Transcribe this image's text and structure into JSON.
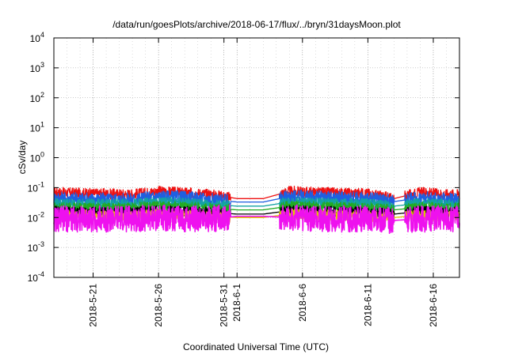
{
  "chart_data": {
    "type": "line",
    "title": "/data/run/goesPlots/archive/2018-06-17/flux/../bryn/31daysMoon.plot",
    "xlabel": "Coordinated Universal Time (UTC)",
    "ylabel": "cSv/day",
    "yscale": "log",
    "ylim": [
      0.0001,
      10000
    ],
    "xlim": [
      "2018-05-18 00:00",
      "2018-06-18 00:00"
    ],
    "grid": true,
    "legend": "none",
    "y_ticks": [
      {
        "value": 0.0001,
        "base": "10",
        "exp": "-4"
      },
      {
        "value": 0.001,
        "base": "10",
        "exp": "-3"
      },
      {
        "value": 0.01,
        "base": "10",
        "exp": "-2"
      },
      {
        "value": 0.1,
        "base": "10",
        "exp": "-1"
      },
      {
        "value": 1,
        "base": "10",
        "exp": "0"
      },
      {
        "value": 10,
        "base": "10",
        "exp": "1"
      },
      {
        "value": 100,
        "base": "10",
        "exp": "2"
      },
      {
        "value": 1000,
        "base": "10",
        "exp": "3"
      },
      {
        "value": 10000,
        "base": "10",
        "exp": "4"
      }
    ],
    "x_ticks": [
      "2018-5-21",
      "2018-5-26",
      "2018-5-31",
      "2018-6-1",
      "2018-6-6",
      "2018-6-11",
      "2018-6-16"
    ],
    "series": [
      {
        "color": "#ee1111",
        "x": [
          "2018-05-18",
          "2018-05-20",
          "2018-05-22",
          "2018-05-24",
          "2018-05-26",
          "2018-05-28",
          "2018-05-30",
          "2018-06-01",
          "2018-06-03",
          "2018-06-05",
          "2018-06-07",
          "2018-06-09",
          "2018-06-11",
          "2018-06-13",
          "2018-06-15",
          "2018-06-17"
        ],
        "values": [
          0.07,
          0.065,
          0.062,
          0.06,
          0.075,
          0.068,
          0.06,
          0.043,
          0.043,
          0.075,
          0.07,
          0.066,
          0.064,
          0.043,
          0.07,
          0.06
        ]
      },
      {
        "color": "#1f5fe0",
        "x": [
          "2018-05-18",
          "2018-05-20",
          "2018-05-22",
          "2018-05-24",
          "2018-05-26",
          "2018-05-28",
          "2018-05-30",
          "2018-06-01",
          "2018-06-03",
          "2018-06-05",
          "2018-06-07",
          "2018-06-09",
          "2018-06-11",
          "2018-06-13",
          "2018-06-15",
          "2018-06-17"
        ],
        "values": [
          0.045,
          0.042,
          0.04,
          0.04,
          0.05,
          0.046,
          0.04,
          0.033,
          0.033,
          0.05,
          0.048,
          0.045,
          0.042,
          0.034,
          0.046,
          0.04
        ]
      },
      {
        "color": "#14a3a3",
        "x": [
          "2018-05-18",
          "2018-05-20",
          "2018-05-22",
          "2018-05-24",
          "2018-05-26",
          "2018-05-28",
          "2018-05-30",
          "2018-06-01",
          "2018-06-03",
          "2018-06-05",
          "2018-06-07",
          "2018-06-09",
          "2018-06-11",
          "2018-06-13",
          "2018-06-15",
          "2018-06-17"
        ],
        "values": [
          0.03,
          0.029,
          0.028,
          0.028,
          0.033,
          0.031,
          0.028,
          0.024,
          0.024,
          0.033,
          0.031,
          0.03,
          0.029,
          0.024,
          0.03,
          0.028
        ]
      },
      {
        "color": "#22aa22",
        "x": [
          "2018-05-18",
          "2018-05-20",
          "2018-05-22",
          "2018-05-24",
          "2018-05-26",
          "2018-05-28",
          "2018-05-30",
          "2018-06-01",
          "2018-06-03",
          "2018-06-05",
          "2018-06-07",
          "2018-06-09",
          "2018-06-11",
          "2018-06-13",
          "2018-06-15",
          "2018-06-17"
        ],
        "values": [
          0.022,
          0.021,
          0.021,
          0.021,
          0.024,
          0.022,
          0.021,
          0.018,
          0.018,
          0.024,
          0.023,
          0.022,
          0.021,
          0.018,
          0.022,
          0.021
        ]
      },
      {
        "color": "#000000",
        "x": [
          "2018-05-18",
          "2018-05-20",
          "2018-05-22",
          "2018-05-24",
          "2018-05-26",
          "2018-05-28",
          "2018-05-30",
          "2018-06-01",
          "2018-06-03",
          "2018-06-05",
          "2018-06-07",
          "2018-06-09",
          "2018-06-11",
          "2018-06-13",
          "2018-06-15",
          "2018-06-17"
        ],
        "values": [
          0.016,
          0.015,
          0.015,
          0.015,
          0.017,
          0.016,
          0.015,
          0.013,
          0.013,
          0.017,
          0.016,
          0.016,
          0.015,
          0.013,
          0.016,
          0.015
        ]
      },
      {
        "color": "#e0c800",
        "x": [
          "2018-05-18",
          "2018-05-20",
          "2018-05-22",
          "2018-05-24",
          "2018-05-26",
          "2018-05-28",
          "2018-05-30",
          "2018-06-01",
          "2018-06-03",
          "2018-06-05",
          "2018-06-07",
          "2018-06-09",
          "2018-06-11",
          "2018-06-13",
          "2018-06-15",
          "2018-06-17"
        ],
        "values": [
          0.012,
          0.012,
          0.012,
          0.011,
          0.013,
          0.012,
          0.011,
          0.01,
          0.01,
          0.013,
          0.012,
          0.012,
          0.011,
          0.01,
          0.012,
          0.011
        ]
      },
      {
        "color": "#ee11ee",
        "x": [
          "2018-05-18",
          "2018-05-20",
          "2018-05-22",
          "2018-05-24",
          "2018-05-26",
          "2018-05-28",
          "2018-05-30",
          "2018-06-01",
          "2018-06-03",
          "2018-06-05",
          "2018-06-07",
          "2018-06-09",
          "2018-06-11",
          "2018-06-13",
          "2018-06-15",
          "2018-06-17"
        ],
        "values": [
          0.009,
          0.009,
          0.009,
          0.009,
          0.01,
          0.009,
          0.009,
          0.011,
          0.011,
          0.01,
          0.009,
          0.009,
          0.009,
          0.008,
          0.009,
          0.009
        ]
      }
    ]
  }
}
